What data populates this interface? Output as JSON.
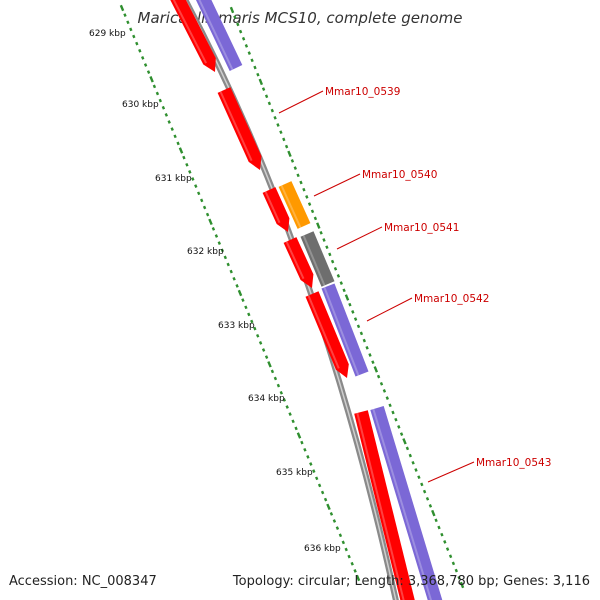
{
  "title": "Maricaulis maris MCS10, complete genome",
  "footer": {
    "accession": "Accession: NC_008347",
    "summary": "Topology: circular; Length: 3,368,780 bp; Genes: 3,116"
  },
  "colors": {
    "forward_cds": "#ff0000",
    "reverse_cds": "#7b68d6",
    "orange_feature": "#ff9900",
    "gray_feature": "#6e6e6e",
    "backbone": "#8a8a8a",
    "tick": "#2f8f2f",
    "gene_label": "#cc0000",
    "tick_label": "#111111"
  },
  "tick_labels": [
    "629 kbp",
    "630 kbp",
    "631 kbp",
    "632 kbp",
    "633 kbp",
    "634 kbp",
    "635 kbp",
    "636 kbp"
  ],
  "gene_labels": [
    "Mmar10_0539",
    "Mmar10_0540",
    "Mmar10_0541",
    "Mmar10_0542",
    "Mmar10_0543"
  ]
}
